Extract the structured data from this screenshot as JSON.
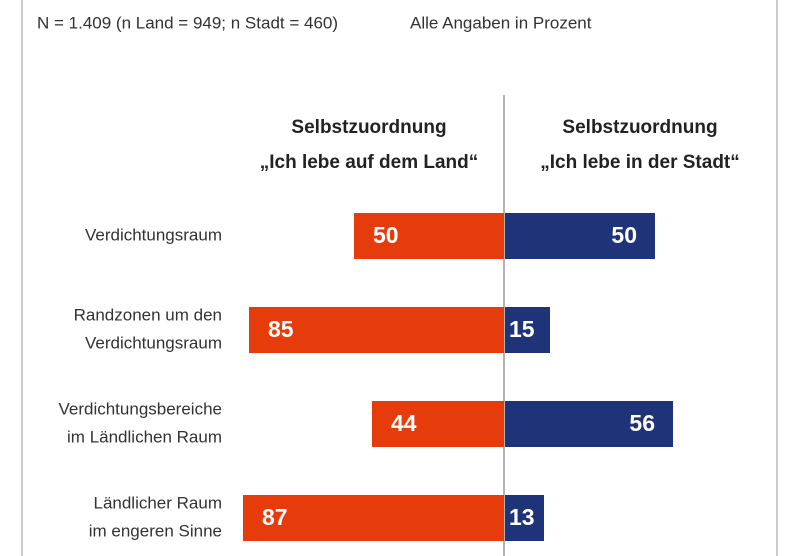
{
  "chart_data": {
    "type": "diverging-bar",
    "notes": [
      "N = 1.409 (n Land = 949; n Stadt = 460)",
      "Alle Angaben in Prozent"
    ],
    "categories": [
      [
        "Verdichtungsraum"
      ],
      [
        "Randzonen um den",
        "Verdichtungsraum"
      ],
      [
        "Verdichtungsbereiche",
        "im Ländlichen Raum"
      ],
      [
        "Ländlicher Raum",
        "im engeren Sinne"
      ]
    ],
    "series": [
      {
        "name": [
          "Selbstzuordnung",
          "„Ich lebe auf dem Land“"
        ],
        "color": "#e63c0b",
        "values": [
          50,
          85,
          44,
          87
        ]
      },
      {
        "name": [
          "Selbstzuordnung",
          "„Ich lebe in der Stadt“"
        ],
        "color": "#1f3478",
        "values": [
          50,
          15,
          56,
          13
        ]
      }
    ]
  }
}
